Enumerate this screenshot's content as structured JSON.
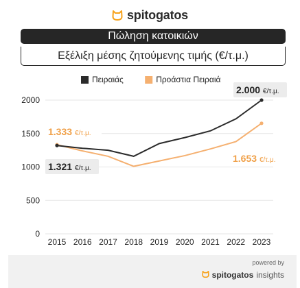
{
  "header": {
    "brand": "spitogatos",
    "banner": "Πώληση κατοικιών",
    "subtitle": "Εξέλιξη μέσης ζητούμενης τιμής (€/τ.μ.)"
  },
  "footer": {
    "powered_by": "powered by",
    "brand": "spitogatos",
    "suffix": "insights"
  },
  "colors": {
    "dark": "#2b2b2b",
    "orange": "#f5b070",
    "orange_text": "#f0a048",
    "brand_orange": "#f7a21b"
  },
  "chart_data": {
    "type": "line",
    "x": [
      "2015",
      "2016",
      "2017",
      "2018",
      "2019",
      "2020",
      "2021",
      "2022",
      "2023"
    ],
    "ylim": [
      0,
      2000
    ],
    "yticks": [
      "0",
      "500",
      "1000",
      "1500",
      "2000"
    ],
    "grid": true,
    "legend_position": "top",
    "series": [
      {
        "name": "Πειραιάς",
        "color": "#2b2b2b",
        "values": [
          1321,
          1280,
          1250,
          1160,
          1350,
          1440,
          1540,
          1720,
          2000
        ]
      },
      {
        "name": "Προάστια Πειραιά",
        "color": "#f5b070",
        "values": [
          1333,
          1240,
          1160,
          1010,
          1090,
          1170,
          1270,
          1380,
          1653
        ]
      }
    ],
    "annotations": [
      {
        "text": "1.333 €/τ.μ.",
        "series": 1,
        "index": 0,
        "style": "orange"
      },
      {
        "text": "1.321 €/τ.μ.",
        "series": 0,
        "index": 0,
        "style": "dark"
      },
      {
        "text": "2.000 €/τ.μ.",
        "series": 0,
        "index": 8,
        "style": "dark"
      },
      {
        "text": "1.653 €/τ.μ.",
        "series": 1,
        "index": 8,
        "style": "orange"
      }
    ]
  }
}
